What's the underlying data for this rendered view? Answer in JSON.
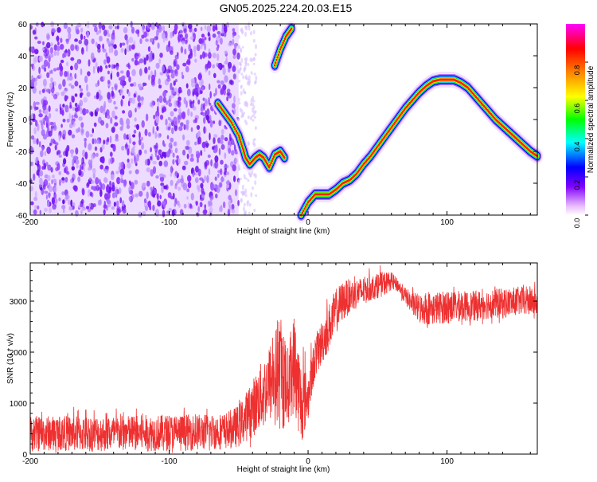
{
  "title": "GN05.2025.224.20.03.E15",
  "chart_data": [
    {
      "type": "heatmap",
      "xlabel": "Height of straight line (km)",
      "ylabel": "Frequency (Hz)",
      "xlim": [
        -200,
        165
      ],
      "ylim": [
        -60,
        60
      ],
      "x_ticks": [
        -200,
        -100,
        0,
        100
      ],
      "y_ticks": [
        -60,
        -40,
        -20,
        0,
        20,
        40,
        60
      ],
      "colorbar": {
        "label": "Normalized spectral amplitude",
        "range": [
          0,
          1
        ],
        "ticks": [
          0,
          0.2,
          0.4,
          0.6,
          0.8
        ],
        "colors": [
          "#ffffff",
          "#e8b8ff",
          "#8000ff",
          "#0000ff",
          "#00ffff",
          "#00ff00",
          "#ffff00",
          "#ff8000",
          "#ff0000",
          "#ff00ff"
        ]
      },
      "noise_region_x": [
        -200,
        -50
      ],
      "ridge": [
        [
          -65,
          10
        ],
        [
          -60,
          4
        ],
        [
          -55,
          -2
        ],
        [
          -50,
          -10
        ],
        [
          -47,
          -18
        ],
        [
          -45,
          -24
        ],
        [
          -42,
          -28
        ],
        [
          -38,
          -24
        ],
        [
          -35,
          -22
        ],
        [
          -32,
          -24
        ],
        [
          -28,
          -30
        ],
        [
          -24,
          -22
        ],
        [
          -20,
          -20
        ],
        [
          -17,
          -24
        ],
        [
          -24,
          34
        ],
        [
          -20,
          44
        ],
        [
          -16,
          52
        ],
        [
          -12,
          57
        ],
        [
          -5,
          -60
        ],
        [
          0,
          -52
        ],
        [
          5,
          -47
        ],
        [
          10,
          -47
        ],
        [
          15,
          -47
        ],
        [
          20,
          -44
        ],
        [
          25,
          -40
        ],
        [
          30,
          -38
        ],
        [
          35,
          -34
        ],
        [
          40,
          -28
        ],
        [
          45,
          -23
        ],
        [
          50,
          -17
        ],
        [
          55,
          -11
        ],
        [
          60,
          -5
        ],
        [
          65,
          1
        ],
        [
          70,
          7
        ],
        [
          75,
          12
        ],
        [
          80,
          17
        ],
        [
          85,
          21
        ],
        [
          90,
          24
        ],
        [
          95,
          25
        ],
        [
          100,
          25
        ],
        [
          105,
          25
        ],
        [
          110,
          23
        ],
        [
          115,
          20
        ],
        [
          120,
          15
        ],
        [
          125,
          10
        ],
        [
          130,
          5
        ],
        [
          135,
          0
        ],
        [
          140,
          -4
        ],
        [
          145,
          -8
        ],
        [
          150,
          -12
        ],
        [
          155,
          -16
        ],
        [
          160,
          -20
        ],
        [
          165,
          -23
        ]
      ]
    },
    {
      "type": "line",
      "xlabel": "Height of straight line (km)",
      "ylabel": "SNR (10 * v/v)",
      "xlim": [
        -200,
        165
      ],
      "ylim": [
        0,
        3750
      ],
      "x_ticks": [
        -200,
        -100,
        0,
        100
      ],
      "y_ticks": [
        0,
        1000,
        2000,
        3000
      ],
      "color": "#ee3030",
      "series": [
        {
          "x": [
            -200,
            -180,
            -160,
            -140,
            -120,
            -100,
            -80,
            -60,
            -50,
            -40,
            -30,
            -25,
            -20,
            -15,
            -10,
            -5,
            0,
            5,
            10,
            15,
            20,
            25,
            30,
            35,
            40,
            45,
            50,
            55,
            60,
            65,
            70,
            75,
            80,
            90,
            100,
            110,
            120,
            130,
            140,
            150,
            160,
            165
          ],
          "low": [
            0,
            0,
            0,
            0,
            0,
            0,
            0,
            0,
            0,
            100,
            300,
            400,
            350,
            500,
            900,
            400,
            800,
            1400,
            1700,
            2000,
            2200,
            2500,
            2700,
            2800,
            2900,
            3000,
            3050,
            3100,
            3150,
            3100,
            2900,
            2700,
            2500,
            2400,
            2450,
            2500,
            2500,
            2550,
            2550,
            2600,
            2600,
            2600
          ],
          "high": [
            950,
            920,
            950,
            940,
            960,
            950,
            950,
            960,
            1100,
            1600,
            2200,
            2700,
            3500,
            2500,
            3550,
            2600,
            2000,
            2500,
            2900,
            3200,
            3400,
            3550,
            3600,
            3600,
            3650,
            3650,
            3700,
            3750,
            3600,
            3450,
            3350,
            3300,
            3300,
            3250,
            3300,
            3300,
            3300,
            3350,
            3350,
            3350,
            3400,
            3400
          ],
          "mean": [
            400,
            410,
            400,
            405,
            410,
            420,
            430,
            450,
            550,
            900,
            1300,
            1500,
            1600,
            1300,
            1800,
            1000,
            1100,
            1900,
            2200,
            2500,
            2800,
            3000,
            3100,
            3150,
            3200,
            3250,
            3300,
            3350,
            3400,
            3300,
            3100,
            2950,
            2850,
            2850,
            2900,
            2900,
            2900,
            2950,
            2950,
            3000,
            3000,
            3000
          ]
        }
      ]
    }
  ]
}
